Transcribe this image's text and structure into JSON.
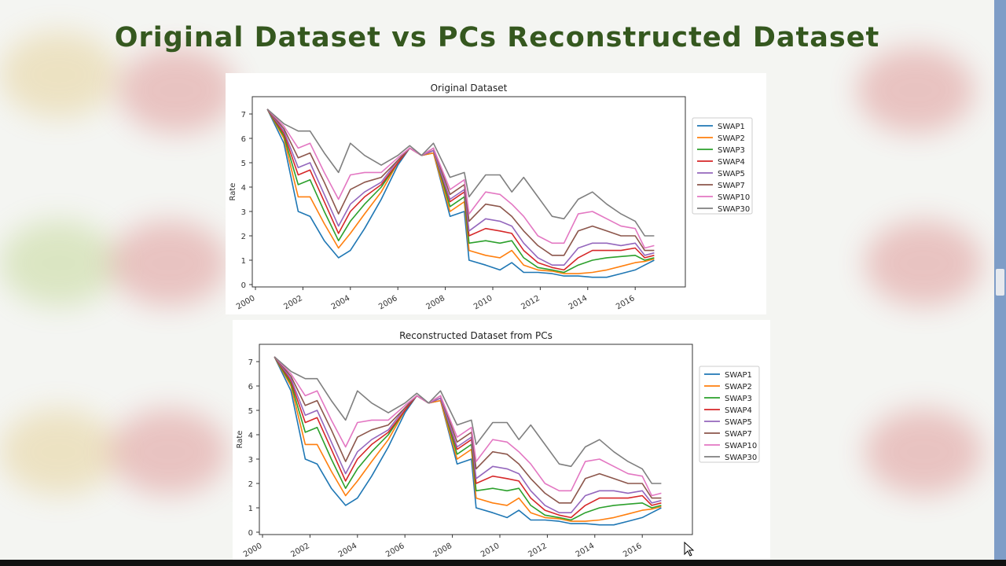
{
  "slide": {
    "title": "Original Dataset vs PCs Reconstructed Dataset",
    "title_color": "#35581f"
  },
  "colors": {
    "SWAP1": "#1f77b4",
    "SWAP2": "#ff7f0e",
    "SWAP3": "#2ca02c",
    "SWAP4": "#d62728",
    "SWAP5": "#9467bd",
    "SWAP7": "#8c564b",
    "SWAP10": "#e377c2",
    "SWAP30": "#7f7f7f"
  },
  "chart_data": [
    {
      "type": "line",
      "title": "Original Dataset",
      "xlabel": "",
      "ylabel": "Rate",
      "xlim": [
        2000,
        2017.5
      ],
      "ylim": [
        0,
        7.5
      ],
      "xticks": [
        "2000",
        "2002",
        "2004",
        "2006",
        "2008",
        "2010",
        "2012",
        "2014",
        "2016"
      ],
      "yticks": [
        "0",
        "1",
        "2",
        "3",
        "4",
        "5",
        "6",
        "7"
      ],
      "grid": false,
      "legend": "right",
      "x": [
        2000.5,
        2001.2,
        2001.8,
        2002.3,
        2002.9,
        2003.5,
        2004.0,
        2004.6,
        2005.3,
        2006.0,
        2006.5,
        2007.0,
        2007.5,
        2008.2,
        2008.8,
        2009.0,
        2009.7,
        2010.3,
        2010.8,
        2011.3,
        2011.9,
        2012.5,
        2013.0,
        2013.6,
        2014.2,
        2014.8,
        2015.4,
        2016.0,
        2016.4,
        2016.8
      ],
      "series": [
        {
          "name": "SWAP1",
          "values": [
            7.2,
            5.8,
            3.0,
            2.8,
            1.8,
            1.1,
            1.4,
            2.3,
            3.5,
            4.9,
            5.6,
            5.3,
            5.4,
            2.8,
            3.0,
            1.0,
            0.8,
            0.6,
            0.9,
            0.5,
            0.5,
            0.45,
            0.35,
            0.35,
            0.3,
            0.3,
            0.45,
            0.6,
            0.8,
            1.0
          ]
        },
        {
          "name": "SWAP2",
          "values": [
            7.2,
            6.0,
            3.6,
            3.6,
            2.5,
            1.5,
            2.1,
            2.9,
            3.8,
            5.0,
            5.6,
            5.3,
            5.4,
            3.0,
            3.4,
            1.4,
            1.2,
            1.1,
            1.4,
            0.8,
            0.6,
            0.55,
            0.45,
            0.45,
            0.5,
            0.6,
            0.75,
            0.9,
            0.95,
            1.05
          ]
        },
        {
          "name": "SWAP3",
          "values": [
            7.2,
            6.1,
            4.1,
            4.3,
            3.0,
            1.8,
            2.6,
            3.3,
            4.0,
            5.0,
            5.6,
            5.3,
            5.5,
            3.2,
            3.6,
            1.7,
            1.8,
            1.7,
            1.8,
            1.1,
            0.7,
            0.6,
            0.5,
            0.8,
            1.0,
            1.1,
            1.15,
            1.2,
            1.0,
            1.1
          ]
        },
        {
          "name": "SWAP4",
          "values": [
            7.2,
            6.2,
            4.5,
            4.7,
            3.4,
            2.1,
            3.0,
            3.6,
            4.1,
            5.0,
            5.6,
            5.3,
            5.5,
            3.4,
            3.8,
            2.0,
            2.3,
            2.2,
            2.1,
            1.4,
            0.9,
            0.7,
            0.6,
            1.1,
            1.4,
            1.4,
            1.4,
            1.5,
            1.1,
            1.2
          ]
        },
        {
          "name": "SWAP5",
          "values": [
            7.2,
            6.3,
            4.8,
            5.0,
            3.7,
            2.4,
            3.3,
            3.8,
            4.2,
            5.1,
            5.6,
            5.3,
            5.5,
            3.5,
            3.9,
            2.2,
            2.7,
            2.6,
            2.4,
            1.7,
            1.1,
            0.8,
            0.8,
            1.5,
            1.7,
            1.7,
            1.6,
            1.7,
            1.2,
            1.3
          ]
        },
        {
          "name": "SWAP7",
          "values": [
            7.2,
            6.4,
            5.2,
            5.4,
            4.2,
            2.9,
            3.9,
            4.2,
            4.4,
            5.1,
            5.6,
            5.3,
            5.6,
            3.7,
            4.1,
            2.6,
            3.3,
            3.2,
            2.8,
            2.2,
            1.6,
            1.2,
            1.2,
            2.2,
            2.4,
            2.2,
            2.0,
            2.0,
            1.4,
            1.4
          ]
        },
        {
          "name": "SWAP10",
          "values": [
            7.2,
            6.5,
            5.6,
            5.8,
            4.6,
            3.5,
            4.5,
            4.6,
            4.6,
            5.2,
            5.6,
            5.3,
            5.6,
            3.9,
            4.3,
            2.9,
            3.8,
            3.7,
            3.3,
            2.8,
            2.0,
            1.7,
            1.7,
            2.9,
            3.0,
            2.7,
            2.4,
            2.3,
            1.5,
            1.6
          ]
        },
        {
          "name": "SWAP30",
          "values": [
            7.2,
            6.6,
            6.3,
            6.3,
            5.4,
            4.6,
            5.8,
            5.3,
            4.9,
            5.3,
            5.7,
            5.3,
            5.8,
            4.4,
            4.6,
            3.6,
            4.5,
            4.5,
            3.8,
            4.4,
            3.6,
            2.8,
            2.7,
            3.5,
            3.8,
            3.3,
            2.9,
            2.6,
            2.0,
            2.0
          ]
        }
      ]
    },
    {
      "type": "line",
      "title": "Reconstructed Dataset from PCs",
      "xlabel": "",
      "ylabel": "Rate",
      "xlim": [
        2000,
        2017.5
      ],
      "ylim": [
        0,
        7.5
      ],
      "xticks": [
        "2000",
        "2002",
        "2004",
        "2006",
        "2008",
        "2010",
        "2012",
        "2014",
        "2016"
      ],
      "yticks": [
        "0",
        "1",
        "2",
        "3",
        "4",
        "5",
        "6",
        "7"
      ],
      "grid": false,
      "legend": "right",
      "x": [
        2000.5,
        2001.2,
        2001.8,
        2002.3,
        2002.9,
        2003.5,
        2004.0,
        2004.6,
        2005.3,
        2006.0,
        2006.5,
        2007.0,
        2007.5,
        2008.2,
        2008.8,
        2009.0,
        2009.7,
        2010.3,
        2010.8,
        2011.3,
        2011.9,
        2012.5,
        2013.0,
        2013.6,
        2014.2,
        2014.8,
        2015.4,
        2016.0,
        2016.4,
        2016.8
      ],
      "series": [
        {
          "name": "SWAP1",
          "values": [
            7.2,
            5.8,
            3.0,
            2.8,
            1.8,
            1.1,
            1.4,
            2.3,
            3.5,
            4.9,
            5.6,
            5.3,
            5.4,
            2.8,
            3.0,
            1.0,
            0.8,
            0.6,
            0.9,
            0.5,
            0.5,
            0.45,
            0.35,
            0.35,
            0.3,
            0.3,
            0.45,
            0.6,
            0.8,
            1.0
          ]
        },
        {
          "name": "SWAP2",
          "values": [
            7.2,
            6.0,
            3.6,
            3.6,
            2.5,
            1.5,
            2.1,
            2.9,
            3.8,
            5.0,
            5.6,
            5.3,
            5.4,
            3.0,
            3.4,
            1.4,
            1.2,
            1.1,
            1.4,
            0.8,
            0.6,
            0.55,
            0.45,
            0.45,
            0.5,
            0.6,
            0.75,
            0.9,
            0.95,
            1.05
          ]
        },
        {
          "name": "SWAP3",
          "values": [
            7.2,
            6.1,
            4.1,
            4.3,
            3.0,
            1.8,
            2.6,
            3.3,
            4.0,
            5.0,
            5.6,
            5.3,
            5.5,
            3.2,
            3.6,
            1.7,
            1.8,
            1.7,
            1.8,
            1.1,
            0.7,
            0.6,
            0.5,
            0.8,
            1.0,
            1.1,
            1.15,
            1.2,
            1.0,
            1.1
          ]
        },
        {
          "name": "SWAP4",
          "values": [
            7.2,
            6.2,
            4.5,
            4.7,
            3.4,
            2.1,
            3.0,
            3.6,
            4.1,
            5.0,
            5.6,
            5.3,
            5.5,
            3.4,
            3.8,
            2.0,
            2.3,
            2.2,
            2.1,
            1.4,
            0.9,
            0.7,
            0.6,
            1.1,
            1.4,
            1.4,
            1.4,
            1.5,
            1.1,
            1.2
          ]
        },
        {
          "name": "SWAP5",
          "values": [
            7.2,
            6.3,
            4.8,
            5.0,
            3.7,
            2.4,
            3.3,
            3.8,
            4.2,
            5.1,
            5.6,
            5.3,
            5.5,
            3.5,
            3.9,
            2.2,
            2.7,
            2.6,
            2.4,
            1.7,
            1.1,
            0.8,
            0.8,
            1.5,
            1.7,
            1.7,
            1.6,
            1.7,
            1.2,
            1.3
          ]
        },
        {
          "name": "SWAP7",
          "values": [
            7.2,
            6.4,
            5.2,
            5.4,
            4.2,
            2.9,
            3.9,
            4.2,
            4.4,
            5.1,
            5.6,
            5.3,
            5.6,
            3.7,
            4.1,
            2.6,
            3.3,
            3.2,
            2.8,
            2.2,
            1.6,
            1.2,
            1.2,
            2.2,
            2.4,
            2.2,
            2.0,
            2.0,
            1.4,
            1.4
          ]
        },
        {
          "name": "SWAP10",
          "values": [
            7.2,
            6.5,
            5.6,
            5.8,
            4.6,
            3.5,
            4.5,
            4.6,
            4.6,
            5.2,
            5.6,
            5.3,
            5.6,
            3.9,
            4.3,
            2.9,
            3.8,
            3.7,
            3.3,
            2.8,
            2.0,
            1.7,
            1.7,
            2.9,
            3.0,
            2.7,
            2.4,
            2.3,
            1.5,
            1.6
          ]
        },
        {
          "name": "SWAP30",
          "values": [
            7.2,
            6.6,
            6.3,
            6.3,
            5.4,
            4.6,
            5.8,
            5.3,
            4.9,
            5.3,
            5.7,
            5.3,
            5.8,
            4.4,
            4.6,
            3.6,
            4.5,
            4.5,
            3.8,
            4.4,
            3.6,
            2.8,
            2.7,
            3.5,
            3.8,
            3.3,
            2.9,
            2.6,
            2.0,
            2.0
          ]
        }
      ]
    }
  ]
}
